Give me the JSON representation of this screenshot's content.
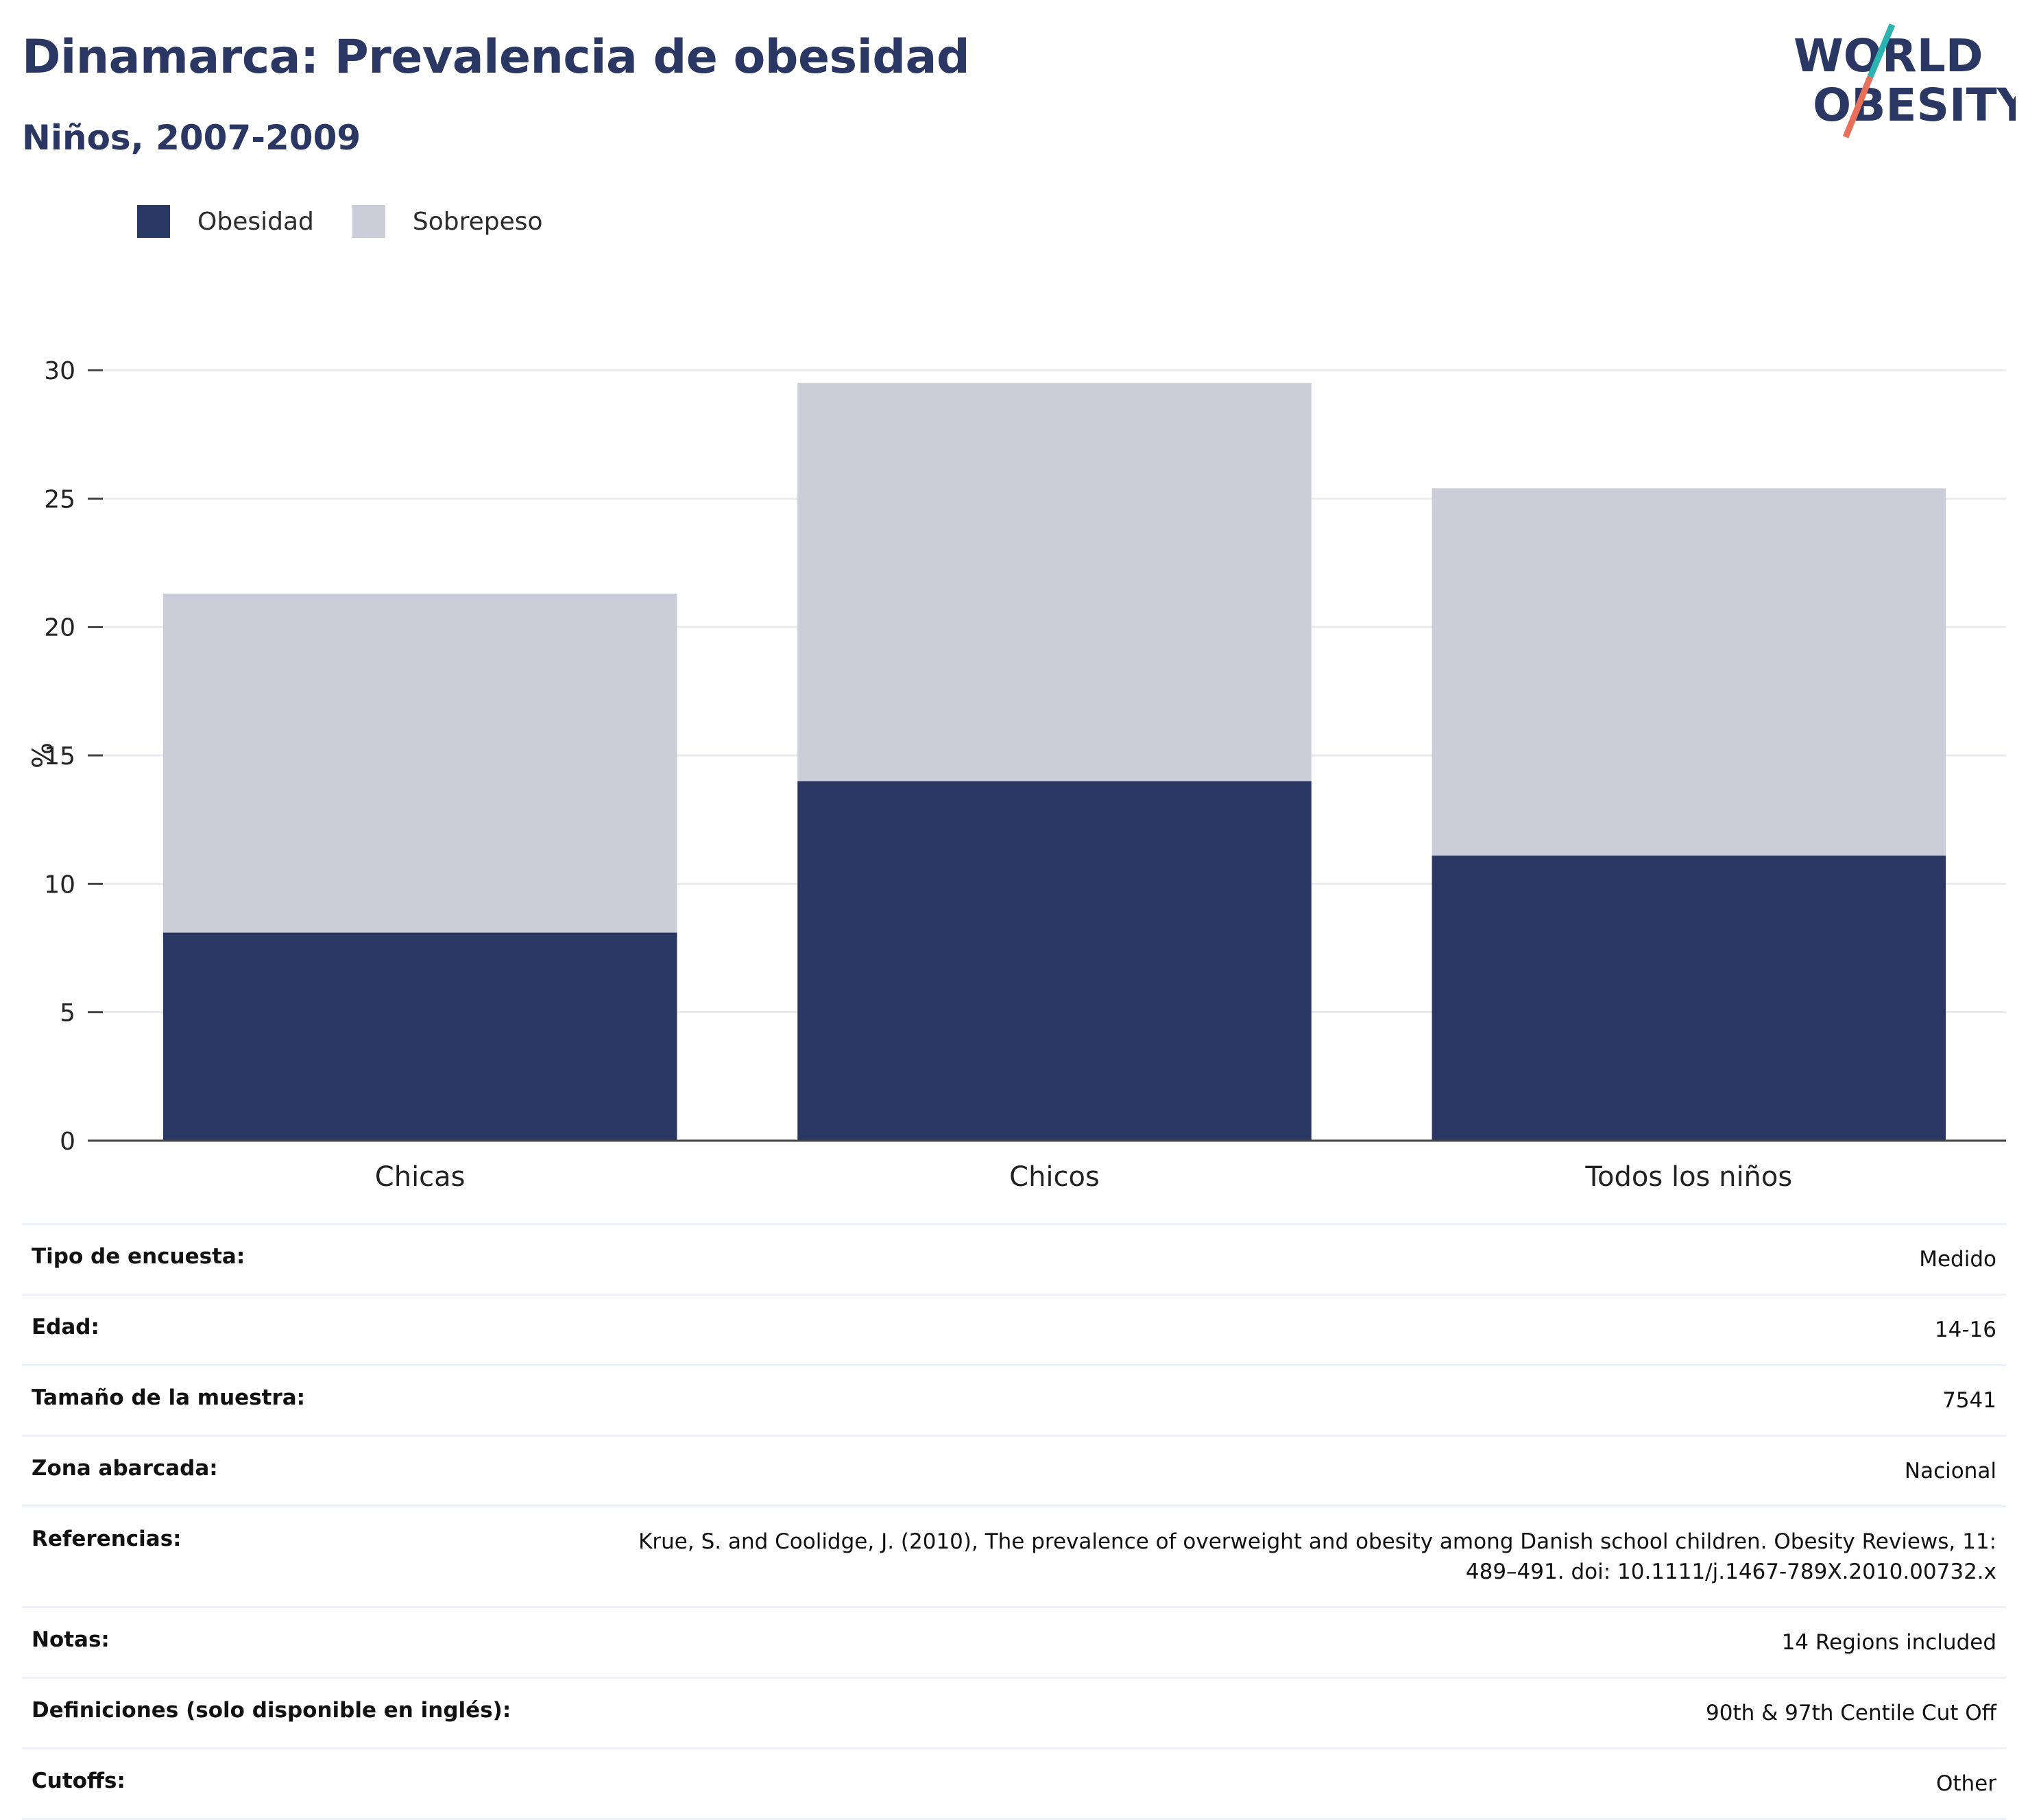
{
  "header": {
    "title": "Dinamarca: Prevalencia de obesidad",
    "subtitle": "Niños, 2007-2009"
  },
  "logo": {
    "line1": "WORLD",
    "line2": "OBESITY",
    "accent_teal": "#2bb3b1",
    "accent_coral": "#e8705a"
  },
  "colors": {
    "obesity": "#2a3763",
    "overweight": "#cbcdd9",
    "grid": "#ebebef",
    "axis": "#444444"
  },
  "chart_data": {
    "type": "bar",
    "stacked": true,
    "categories": [
      "Chicas",
      "Chicos",
      "Todos los niños"
    ],
    "series": [
      {
        "name": "Obesidad",
        "values": [
          8.1,
          14.0,
          11.1
        ],
        "color": "#2a3763"
      },
      {
        "name": "Sobrepeso",
        "values": [
          13.2,
          15.5,
          14.3
        ],
        "color": "#cbcdd9"
      }
    ],
    "ylabel": "%",
    "ylim": [
      0,
      30
    ],
    "yticks": [
      0,
      5,
      10,
      15,
      20,
      25,
      30
    ],
    "grid": true,
    "legend_position": "top-left"
  },
  "details": [
    {
      "label": "Tipo de encuesta:",
      "value": "Medido"
    },
    {
      "label": "Edad:",
      "value": "14-16"
    },
    {
      "label": "Tamaño de la muestra:",
      "value": "7541"
    },
    {
      "label": "Zona abarcada:",
      "value": "Nacional"
    },
    {
      "label": "Referencias:",
      "value": "Krue, S. and Coolidge, J. (2010), The prevalence of overweight and obesity among Danish school children. Obesity Reviews, 11: 489–491. doi: 10.1111/j.1467-789X.2010.00732.x"
    },
    {
      "label": "Notas:",
      "value": "14 Regions included"
    },
    {
      "label": "Definiciones (solo disponible en inglés):",
      "value": "90th & 97th Centile Cut Off"
    },
    {
      "label": "Cutoffs:",
      "value": "Other"
    }
  ]
}
